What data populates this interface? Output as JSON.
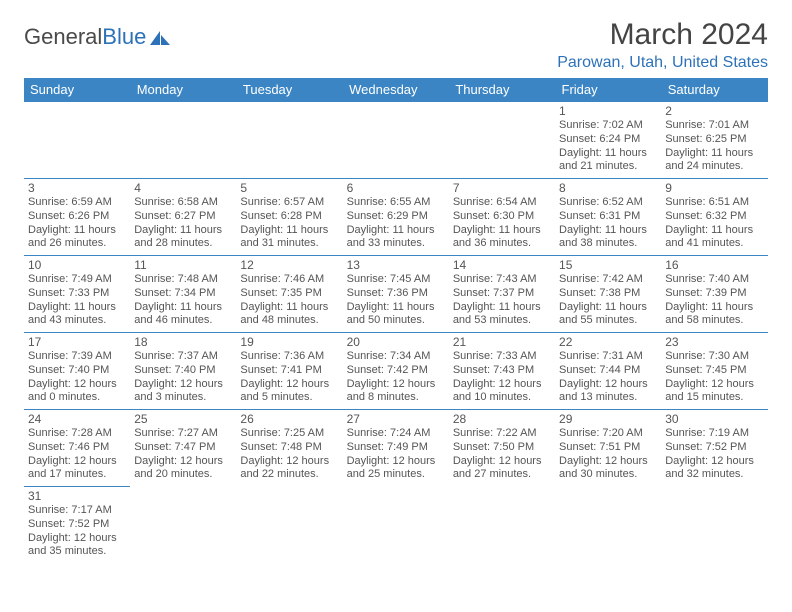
{
  "logo": {
    "text1": "General",
    "text2": "Blue"
  },
  "title": "March 2024",
  "location": "Parowan, Utah, United States",
  "colors": {
    "header_bg": "#3b85c4",
    "header_text": "#ffffff",
    "accent": "#2d72b8",
    "body_text": "#555555",
    "border": "#3b85c4"
  },
  "weekdays": [
    "Sunday",
    "Monday",
    "Tuesday",
    "Wednesday",
    "Thursday",
    "Friday",
    "Saturday"
  ],
  "weeks": [
    [
      null,
      null,
      null,
      null,
      null,
      {
        "d": "1",
        "sr": "Sunrise: 7:02 AM",
        "ss": "Sunset: 6:24 PM",
        "dl1": "Daylight: 11 hours",
        "dl2": "and 21 minutes."
      },
      {
        "d": "2",
        "sr": "Sunrise: 7:01 AM",
        "ss": "Sunset: 6:25 PM",
        "dl1": "Daylight: 11 hours",
        "dl2": "and 24 minutes."
      }
    ],
    [
      {
        "d": "3",
        "sr": "Sunrise: 6:59 AM",
        "ss": "Sunset: 6:26 PM",
        "dl1": "Daylight: 11 hours",
        "dl2": "and 26 minutes."
      },
      {
        "d": "4",
        "sr": "Sunrise: 6:58 AM",
        "ss": "Sunset: 6:27 PM",
        "dl1": "Daylight: 11 hours",
        "dl2": "and 28 minutes."
      },
      {
        "d": "5",
        "sr": "Sunrise: 6:57 AM",
        "ss": "Sunset: 6:28 PM",
        "dl1": "Daylight: 11 hours",
        "dl2": "and 31 minutes."
      },
      {
        "d": "6",
        "sr": "Sunrise: 6:55 AM",
        "ss": "Sunset: 6:29 PM",
        "dl1": "Daylight: 11 hours",
        "dl2": "and 33 minutes."
      },
      {
        "d": "7",
        "sr": "Sunrise: 6:54 AM",
        "ss": "Sunset: 6:30 PM",
        "dl1": "Daylight: 11 hours",
        "dl2": "and 36 minutes."
      },
      {
        "d": "8",
        "sr": "Sunrise: 6:52 AM",
        "ss": "Sunset: 6:31 PM",
        "dl1": "Daylight: 11 hours",
        "dl2": "and 38 minutes."
      },
      {
        "d": "9",
        "sr": "Sunrise: 6:51 AM",
        "ss": "Sunset: 6:32 PM",
        "dl1": "Daylight: 11 hours",
        "dl2": "and 41 minutes."
      }
    ],
    [
      {
        "d": "10",
        "sr": "Sunrise: 7:49 AM",
        "ss": "Sunset: 7:33 PM",
        "dl1": "Daylight: 11 hours",
        "dl2": "and 43 minutes."
      },
      {
        "d": "11",
        "sr": "Sunrise: 7:48 AM",
        "ss": "Sunset: 7:34 PM",
        "dl1": "Daylight: 11 hours",
        "dl2": "and 46 minutes."
      },
      {
        "d": "12",
        "sr": "Sunrise: 7:46 AM",
        "ss": "Sunset: 7:35 PM",
        "dl1": "Daylight: 11 hours",
        "dl2": "and 48 minutes."
      },
      {
        "d": "13",
        "sr": "Sunrise: 7:45 AM",
        "ss": "Sunset: 7:36 PM",
        "dl1": "Daylight: 11 hours",
        "dl2": "and 50 minutes."
      },
      {
        "d": "14",
        "sr": "Sunrise: 7:43 AM",
        "ss": "Sunset: 7:37 PM",
        "dl1": "Daylight: 11 hours",
        "dl2": "and 53 minutes."
      },
      {
        "d": "15",
        "sr": "Sunrise: 7:42 AM",
        "ss": "Sunset: 7:38 PM",
        "dl1": "Daylight: 11 hours",
        "dl2": "and 55 minutes."
      },
      {
        "d": "16",
        "sr": "Sunrise: 7:40 AM",
        "ss": "Sunset: 7:39 PM",
        "dl1": "Daylight: 11 hours",
        "dl2": "and 58 minutes."
      }
    ],
    [
      {
        "d": "17",
        "sr": "Sunrise: 7:39 AM",
        "ss": "Sunset: 7:40 PM",
        "dl1": "Daylight: 12 hours",
        "dl2": "and 0 minutes."
      },
      {
        "d": "18",
        "sr": "Sunrise: 7:37 AM",
        "ss": "Sunset: 7:40 PM",
        "dl1": "Daylight: 12 hours",
        "dl2": "and 3 minutes."
      },
      {
        "d": "19",
        "sr": "Sunrise: 7:36 AM",
        "ss": "Sunset: 7:41 PM",
        "dl1": "Daylight: 12 hours",
        "dl2": "and 5 minutes."
      },
      {
        "d": "20",
        "sr": "Sunrise: 7:34 AM",
        "ss": "Sunset: 7:42 PM",
        "dl1": "Daylight: 12 hours",
        "dl2": "and 8 minutes."
      },
      {
        "d": "21",
        "sr": "Sunrise: 7:33 AM",
        "ss": "Sunset: 7:43 PM",
        "dl1": "Daylight: 12 hours",
        "dl2": "and 10 minutes."
      },
      {
        "d": "22",
        "sr": "Sunrise: 7:31 AM",
        "ss": "Sunset: 7:44 PM",
        "dl1": "Daylight: 12 hours",
        "dl2": "and 13 minutes."
      },
      {
        "d": "23",
        "sr": "Sunrise: 7:30 AM",
        "ss": "Sunset: 7:45 PM",
        "dl1": "Daylight: 12 hours",
        "dl2": "and 15 minutes."
      }
    ],
    [
      {
        "d": "24",
        "sr": "Sunrise: 7:28 AM",
        "ss": "Sunset: 7:46 PM",
        "dl1": "Daylight: 12 hours",
        "dl2": "and 17 minutes."
      },
      {
        "d": "25",
        "sr": "Sunrise: 7:27 AM",
        "ss": "Sunset: 7:47 PM",
        "dl1": "Daylight: 12 hours",
        "dl2": "and 20 minutes."
      },
      {
        "d": "26",
        "sr": "Sunrise: 7:25 AM",
        "ss": "Sunset: 7:48 PM",
        "dl1": "Daylight: 12 hours",
        "dl2": "and 22 minutes."
      },
      {
        "d": "27",
        "sr": "Sunrise: 7:24 AM",
        "ss": "Sunset: 7:49 PM",
        "dl1": "Daylight: 12 hours",
        "dl2": "and 25 minutes."
      },
      {
        "d": "28",
        "sr": "Sunrise: 7:22 AM",
        "ss": "Sunset: 7:50 PM",
        "dl1": "Daylight: 12 hours",
        "dl2": "and 27 minutes."
      },
      {
        "d": "29",
        "sr": "Sunrise: 7:20 AM",
        "ss": "Sunset: 7:51 PM",
        "dl1": "Daylight: 12 hours",
        "dl2": "and 30 minutes."
      },
      {
        "d": "30",
        "sr": "Sunrise: 7:19 AM",
        "ss": "Sunset: 7:52 PM",
        "dl1": "Daylight: 12 hours",
        "dl2": "and 32 minutes."
      }
    ],
    [
      {
        "d": "31",
        "sr": "Sunrise: 7:17 AM",
        "ss": "Sunset: 7:52 PM",
        "dl1": "Daylight: 12 hours",
        "dl2": "and 35 minutes."
      },
      null,
      null,
      null,
      null,
      null,
      null
    ]
  ]
}
